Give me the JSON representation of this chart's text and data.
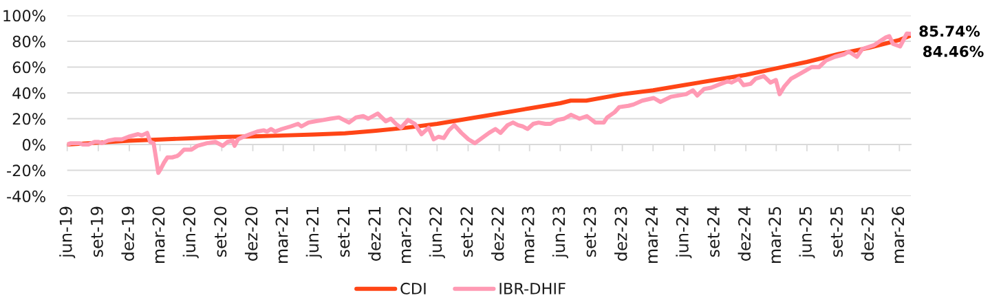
{
  "chart_data": {
    "type": "line",
    "xlim": [
      "2019-06-30",
      "2026-05-04"
    ],
    "xticks": [
      {
        "value": "2019-06-30",
        "label": "jun-19"
      },
      {
        "value": "2019-09-30",
        "label": "set-19"
      },
      {
        "value": "2019-12-31",
        "label": "dez-19"
      },
      {
        "value": "2020-03-31",
        "label": "mar-20"
      },
      {
        "value": "2020-06-30",
        "label": "jun-20"
      },
      {
        "value": "2020-09-30",
        "label": "set-20"
      },
      {
        "value": "2020-12-31",
        "label": "dez-20"
      },
      {
        "value": "2021-03-31",
        "label": "mar-21"
      },
      {
        "value": "2021-06-30",
        "label": "jun-21"
      },
      {
        "value": "2021-09-30",
        "label": "set-21"
      },
      {
        "value": "2021-12-31",
        "label": "dez-21"
      },
      {
        "value": "2022-03-31",
        "label": "mar-22"
      },
      {
        "value": "2022-06-30",
        "label": "jun-22"
      },
      {
        "value": "2022-09-30",
        "label": "set-22"
      },
      {
        "value": "2022-12-31",
        "label": "dez-22"
      },
      {
        "value": "2023-03-31",
        "label": "mar-23"
      },
      {
        "value": "2023-06-30",
        "label": "jun-23"
      },
      {
        "value": "2023-09-30",
        "label": "set-23"
      },
      {
        "value": "2023-12-31",
        "label": "dez-23"
      },
      {
        "value": "2024-03-31",
        "label": "mar-24"
      },
      {
        "value": "2024-06-30",
        "label": "jun-24"
      },
      {
        "value": "2024-09-30",
        "label": "set-24"
      },
      {
        "value": "2024-12-31",
        "label": "dez-24"
      },
      {
        "value": "2025-03-31",
        "label": "mar-25"
      },
      {
        "value": "2025-06-30",
        "label": "jun-25"
      },
      {
        "value": "2025-09-30",
        "label": "set-25"
      },
      {
        "value": "2025-12-31",
        "label": "dez-25"
      },
      {
        "value": "2026-03-31",
        "label": "mar-26"
      }
    ],
    "ylim": [
      -40,
      100
    ],
    "yticks": [
      {
        "value": -40,
        "label": "-40%"
      },
      {
        "value": -20,
        "label": "-20%"
      },
      {
        "value": 0,
        "label": "0%"
      },
      {
        "value": 20,
        "label": "20%"
      },
      {
        "value": 40,
        "label": "40%"
      },
      {
        "value": 60,
        "label": "60%"
      },
      {
        "value": 80,
        "label": "80%"
      },
      {
        "value": 100,
        "label": "100%"
      }
    ],
    "grid": "y",
    "legend": "bottom",
    "series": [
      {
        "name": "CDI",
        "color": "#ff4516",
        "x": [
          "2019-06-30",
          "2019-09-30",
          "2019-12-31",
          "2020-03-31",
          "2020-06-30",
          "2020-09-30",
          "2020-12-31",
          "2021-03-31",
          "2021-06-30",
          "2021-09-30",
          "2021-12-31",
          "2022-03-31",
          "2022-06-30",
          "2022-09-30",
          "2022-12-31",
          "2023-03-31",
          "2023-06-30",
          "2023-07-31",
          "2023-09-15",
          "2023-12-31",
          "2024-03-31",
          "2024-06-30",
          "2024-09-30",
          "2024-12-31",
          "2025-03-31",
          "2025-06-30",
          "2025-09-30",
          "2025-12-31",
          "2026-03-31",
          "2026-05-04"
        ],
        "values": [
          0,
          1.4,
          2.9,
          3.9,
          4.8,
          5.9,
          6.3,
          7.0,
          7.7,
          8.7,
          10.7,
          13,
          16,
          20,
          24,
          28,
          32,
          34,
          34,
          39,
          42,
          46,
          50,
          54,
          59,
          64,
          70,
          75,
          81,
          84.46
        ]
      },
      {
        "name": "IBR-DHIF",
        "color": "#ff9ab4",
        "x": [
          "2019-06-30",
          "2019-07-11",
          "2019-08-05",
          "2019-08-15",
          "2019-09-01",
          "2019-09-19",
          "2019-10-01",
          "2019-10-11",
          "2019-10-29",
          "2019-11-19",
          "2019-12-09",
          "2019-12-29",
          "2020-01-26",
          "2020-02-06",
          "2020-02-22",
          "2020-03-02",
          "2020-03-12",
          "2020-03-20",
          "2020-03-26",
          "2020-04-02",
          "2020-04-12",
          "2020-04-22",
          "2020-05-06",
          "2020-05-20",
          "2020-05-26",
          "2020-06-10",
          "2020-06-20",
          "2020-07-02",
          "2020-07-20",
          "2020-08-17",
          "2020-09-11",
          "2020-10-03",
          "2020-10-17",
          "2020-11-01",
          "2020-11-07",
          "2020-11-17",
          "2020-12-03",
          "2020-12-23",
          "2021-01-13",
          "2021-02-01",
          "2021-02-11",
          "2021-02-23",
          "2021-03-07",
          "2021-03-27",
          "2021-04-22",
          "2021-05-14",
          "2021-05-24",
          "2021-06-14",
          "2021-07-04",
          "2021-07-28",
          "2021-08-18",
          "2021-09-12",
          "2021-10-12",
          "2021-11-02",
          "2021-11-23",
          "2021-12-08",
          "2022-01-05",
          "2022-01-29",
          "2022-02-13",
          "2022-02-28",
          "2022-03-15",
          "2022-04-05",
          "2022-04-25",
          "2022-05-15",
          "2022-06-05",
          "2022-06-20",
          "2022-07-04",
          "2022-07-20",
          "2022-08-04",
          "2022-08-20",
          "2022-09-10",
          "2022-10-01",
          "2022-10-20",
          "2022-11-10",
          "2022-12-01",
          "2022-12-20",
          "2023-01-04",
          "2023-01-25",
          "2023-02-10",
          "2023-02-25",
          "2023-03-11",
          "2023-03-25",
          "2023-04-11",
          "2023-04-27",
          "2023-05-17",
          "2023-06-01",
          "2023-06-21",
          "2023-07-11",
          "2023-08-01",
          "2023-08-26",
          "2023-09-17",
          "2023-10-12",
          "2023-11-06",
          "2023-11-16",
          "2023-12-08",
          "2023-12-22",
          "2024-01-18",
          "2024-02-02",
          "2024-02-28",
          "2024-04-02",
          "2024-04-22",
          "2024-05-23",
          "2024-07-07",
          "2024-07-27",
          "2024-08-09",
          "2024-08-29",
          "2024-09-19",
          "2024-10-18",
          "2024-11-07",
          "2024-11-19",
          "2024-12-10",
          "2024-12-24",
          "2025-01-14",
          "2025-01-29",
          "2025-02-22",
          "2025-03-14",
          "2025-03-30",
          "2025-04-10",
          "2025-04-24",
          "2025-05-14",
          "2025-05-28",
          "2025-06-24",
          "2025-07-14",
          "2025-08-05",
          "2025-08-25",
          "2025-09-21",
          "2025-10-19",
          "2025-11-01",
          "2025-11-25",
          "2025-12-11",
          "2026-01-15",
          "2026-02-01",
          "2026-02-19",
          "2026-03-01",
          "2026-03-12",
          "2026-04-02",
          "2026-04-10",
          "2026-04-22",
          "2026-05-04"
        ],
        "values": [
          0,
          1,
          1,
          0,
          0,
          2,
          2,
          1,
          3,
          4,
          4,
          6,
          8,
          7,
          9,
          2,
          1,
          -12,
          -22,
          -19,
          -14,
          -10,
          -10,
          -9,
          -8,
          -4,
          -4,
          -4,
          -1,
          1,
          2,
          -1,
          2,
          3,
          -1,
          4,
          6,
          8,
          10,
          11,
          10,
          12,
          10,
          12,
          14,
          16,
          14,
          17,
          18,
          19,
          20,
          21,
          17,
          21,
          22,
          20,
          24,
          18,
          20,
          16,
          13,
          19,
          16,
          8,
          13,
          4,
          6,
          5,
          11,
          15,
          9,
          4,
          1,
          5,
          9,
          12,
          9,
          15,
          17,
          15,
          14,
          12,
          16,
          17,
          16,
          16,
          19,
          20,
          23,
          20,
          22,
          17,
          17,
          21,
          25,
          29,
          30,
          31,
          34,
          36,
          33,
          37,
          39,
          42,
          38,
          43,
          44,
          47,
          49,
          48,
          51,
          46,
          47,
          51,
          53,
          48,
          50,
          39,
          45,
          51,
          53,
          57,
          60,
          60,
          65,
          68,
          70,
          72,
          68,
          74,
          77,
          80,
          83,
          84,
          78,
          76,
          80,
          86,
          85.74
        ]
      }
    ],
    "annotations": [
      {
        "text": "85.74%",
        "x": "2026-05-04",
        "y": 85.74
      },
      {
        "text": "84.46%",
        "x": "2026-05-04",
        "y": 84.46
      }
    ]
  }
}
